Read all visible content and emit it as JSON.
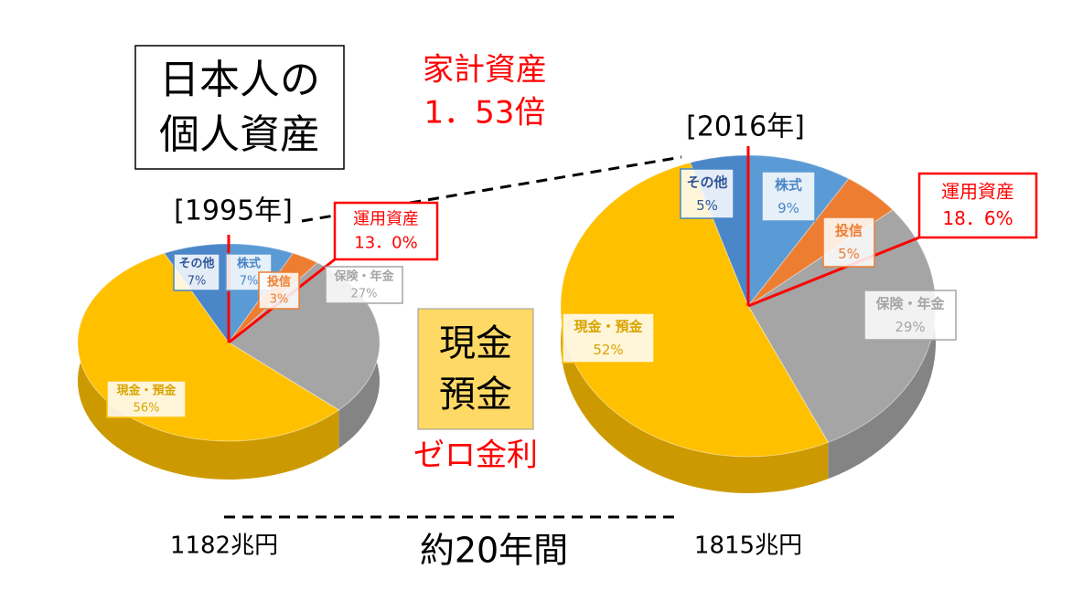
{
  "title": [
    "日本人の",
    "個人資産"
  ],
  "growth": [
    "家計資産",
    "1．53倍"
  ],
  "cash_note": [
    "現金",
    "預金"
  ],
  "rate_note": "ゼロ金利",
  "period": "約20年間",
  "chart_data": [
    {
      "type": "pie",
      "year": "[1995年]",
      "total": "1182兆円",
      "callout": [
        "運用資産",
        "13．0%"
      ],
      "categories": [
        "株式",
        "投信",
        "保険・年金",
        "現金・預金",
        "その他"
      ],
      "values": [
        7,
        3,
        27,
        56,
        7
      ],
      "value_labels": [
        "7%",
        "3%",
        "27%",
        "56%",
        "7%"
      ],
      "colors": [
        "#5B9BD5",
        "#ED7D31",
        "#A5A5A5",
        "#FFC000",
        "#4A86C8"
      ]
    },
    {
      "type": "pie",
      "year": "[2016年]",
      "total": "1815兆円",
      "callout": [
        "運用資産",
        "18．6%"
      ],
      "categories": [
        "株式",
        "投信",
        "保険・年金",
        "現金・預金",
        "その他"
      ],
      "values": [
        9,
        5,
        29,
        52,
        5
      ],
      "value_labels": [
        "9%",
        "5%",
        "29%",
        "52%",
        "5%"
      ],
      "colors": [
        "#5B9BD5",
        "#ED7D31",
        "#A5A5A5",
        "#FFC000",
        "#4A86C8"
      ]
    }
  ]
}
